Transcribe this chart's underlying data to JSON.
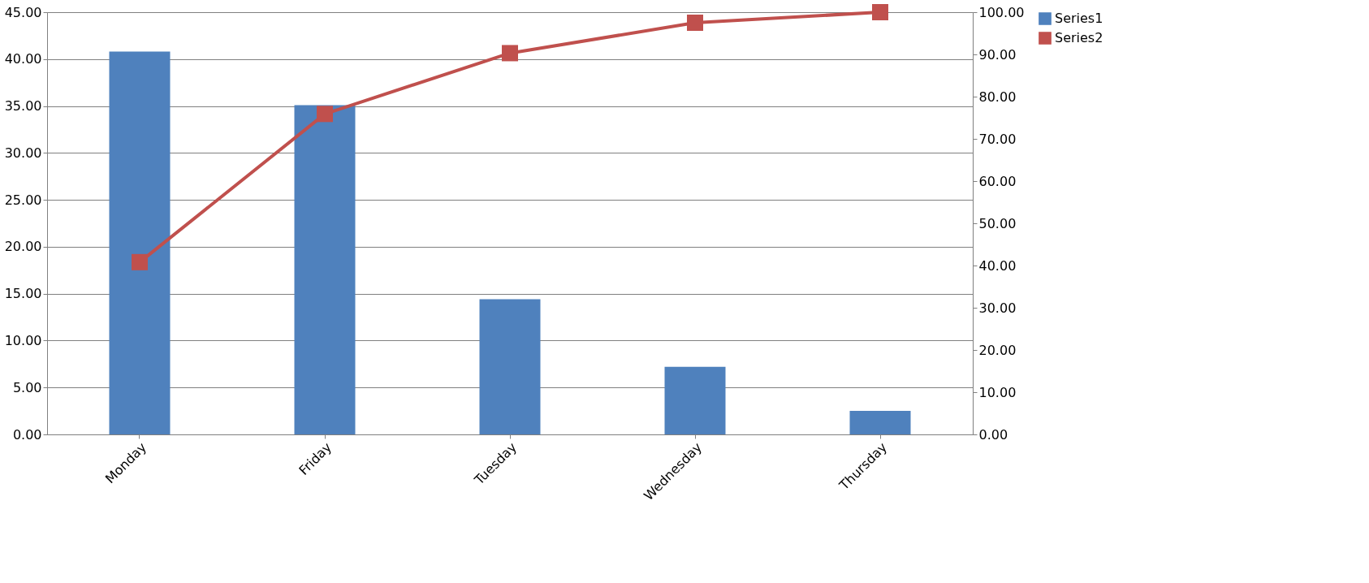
{
  "chart_data": {
    "type": "bar",
    "categories": [
      "Monday",
      "Friday",
      "Tuesday",
      "Wednesday",
      "Thursday"
    ],
    "series": [
      {
        "name": "Series1",
        "color": "#4f81bd",
        "values": [
          40.8,
          35.1,
          14.4,
          7.2,
          2.5
        ]
      },
      {
        "name": "Series2",
        "type": "line",
        "axis": "y2",
        "color": "#c0504d",
        "values": [
          40.8,
          75.9,
          90.3,
          97.5,
          100
        ]
      }
    ],
    "ylim": [
      0,
      45
    ],
    "yticks": [
      {
        "value": 0,
        "label": "0.00"
      },
      {
        "value": 5,
        "label": "5.00"
      },
      {
        "value": 10,
        "label": "10.00"
      },
      {
        "value": 15,
        "label": "15.00"
      },
      {
        "value": 20,
        "label": "20.00"
      },
      {
        "value": 25,
        "label": "25.00"
      },
      {
        "value": 30,
        "label": "30.00"
      },
      {
        "value": 35,
        "label": "35.00"
      },
      {
        "value": 40,
        "label": "40.00"
      },
      {
        "value": 45,
        "label": "45.00"
      }
    ],
    "y2lim": [
      0,
      100
    ],
    "y2ticks": [
      {
        "value": 0,
        "label": "0.00"
      },
      {
        "value": 10,
        "label": "10.00"
      },
      {
        "value": 20,
        "label": "20.00"
      },
      {
        "value": 30,
        "label": "30.00"
      },
      {
        "value": 40,
        "label": "40.00"
      },
      {
        "value": 50,
        "label": "50.00"
      },
      {
        "value": 60,
        "label": "60.00"
      },
      {
        "value": 70,
        "label": "70.00"
      },
      {
        "value": 80,
        "label": "80.00"
      },
      {
        "value": 90,
        "label": "90.00"
      },
      {
        "value": 100,
        "label": "100.00"
      }
    ],
    "grid": "y",
    "legend": "right",
    "marker": "square",
    "line_style": "solid"
  }
}
